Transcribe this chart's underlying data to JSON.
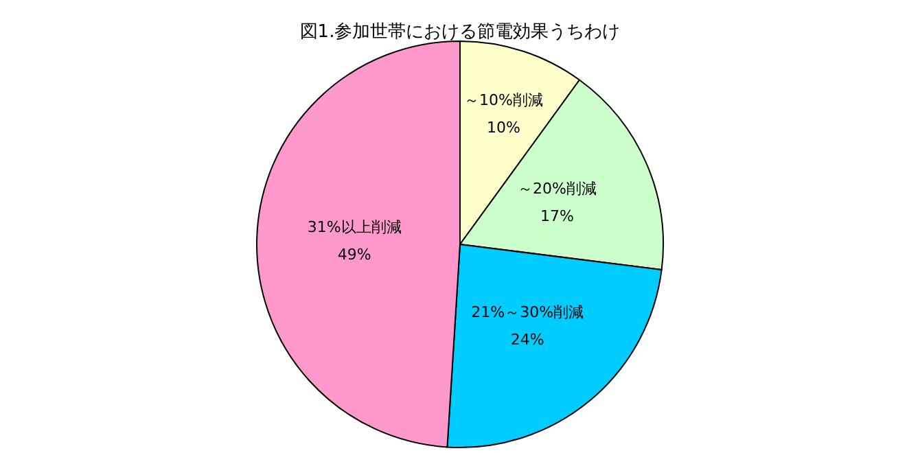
{
  "chart_data": {
    "type": "pie",
    "title": "図1.参加世帯における節電効果うちわけ",
    "categories": [
      "～10%削減",
      "～20%削減",
      "21%～30%削減",
      "31%以上削減"
    ],
    "values": [
      10,
      17,
      24,
      49
    ],
    "value_labels": [
      "10%",
      "17%",
      "24%",
      "49%"
    ],
    "colors": [
      "#ffffcc",
      "#ccffcc",
      "#00ccff",
      "#ff99cc"
    ],
    "legend": false
  }
}
